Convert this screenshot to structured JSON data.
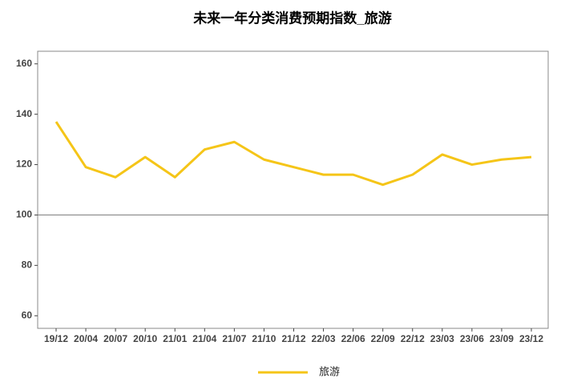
{
  "chart_data": {
    "type": "line",
    "title": "未来一年分类消费预期指数_旅游",
    "categories": [
      "19/12",
      "20/04",
      "20/07",
      "20/10",
      "21/01",
      "21/04",
      "21/07",
      "21/10",
      "21/12",
      "22/03",
      "22/06",
      "22/09",
      "22/12",
      "23/03",
      "23/06",
      "23/09",
      "23/12"
    ],
    "series": [
      {
        "name": "旅游",
        "color": "#f5c518",
        "values": [
          137,
          119,
          115,
          123,
          115,
          126,
          129,
          122,
          119,
          116,
          116,
          112,
          116,
          124,
          120,
          122,
          123
        ]
      }
    ],
    "ylim": [
      55,
      165
    ],
    "yticks": [
      60,
      80,
      100,
      120,
      140,
      160
    ],
    "reference_line": 100,
    "grid": false,
    "legend": "bottom"
  }
}
